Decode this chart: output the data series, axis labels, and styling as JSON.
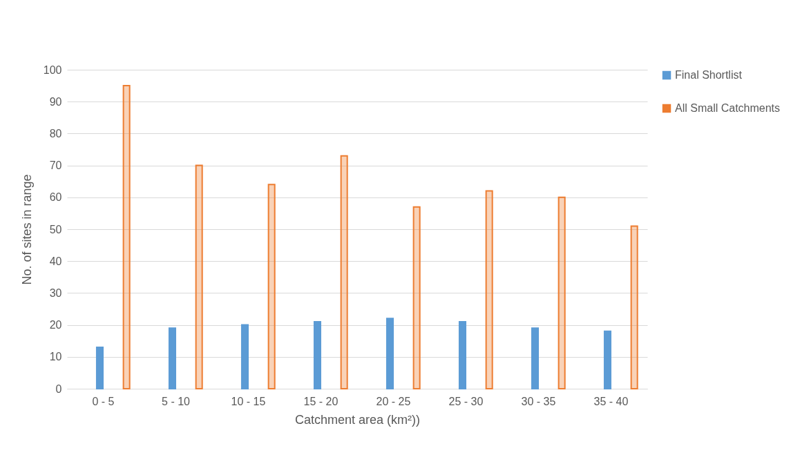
{
  "chart_data": {
    "type": "bar",
    "xlabel": "Catchment area (km²))",
    "ylabel": "No. of sites in range",
    "categories": [
      "0 - 5",
      "5 - 10",
      "10 - 15",
      "15 - 20",
      "20 - 25",
      "25 - 30",
      "30 - 35",
      "35 - 40"
    ],
    "series": [
      {
        "name": "Final Shortlist",
        "color": "#5b9bd5",
        "values": [
          13,
          19,
          20,
          21,
          22,
          21,
          19,
          18
        ]
      },
      {
        "name": "All Small Catchments",
        "color": "#ed7d31",
        "values": [
          95,
          70,
          64,
          73,
          57,
          62,
          60,
          51
        ]
      }
    ],
    "ylim": [
      0,
      100
    ],
    "yticks": [
      0,
      10,
      20,
      30,
      40,
      50,
      60,
      70,
      80,
      90,
      100
    ],
    "grid": "y",
    "legend": "top right"
  }
}
